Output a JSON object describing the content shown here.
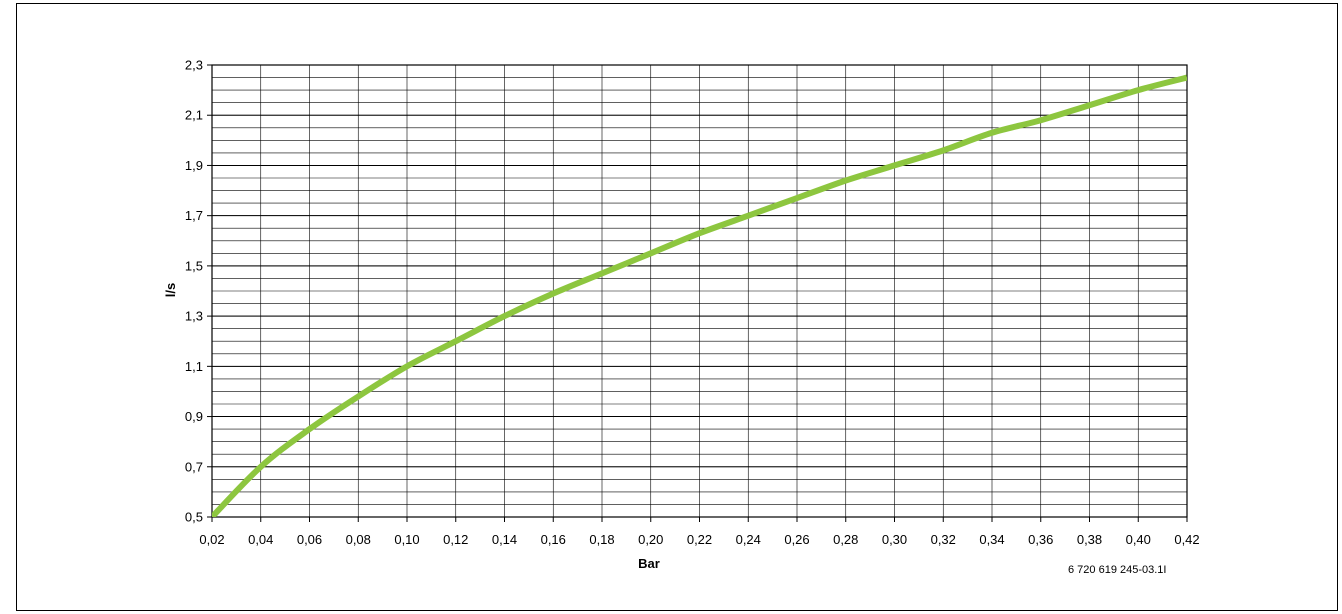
{
  "chart_data": {
    "type": "line",
    "xlabel": "Bar",
    "ylabel": "l/s",
    "xlim": [
      0.02,
      0.42
    ],
    "ylim": [
      0.5,
      2.3
    ],
    "x_ticks": [
      "0,02",
      "0,04",
      "0,06",
      "0,08",
      "0,10",
      "0,12",
      "0,14",
      "0,16",
      "0,18",
      "0,20",
      "0,22",
      "0,24",
      "0,26",
      "0,28",
      "0,30",
      "0,32",
      "0,34",
      "0,36",
      "0,38",
      "0,40",
      "0,42"
    ],
    "y_ticks": [
      "0,5",
      "0,7",
      "0,9",
      "1,1",
      "1,3",
      "1,5",
      "1,7",
      "1,9",
      "2,1",
      "2,3"
    ],
    "grid": true,
    "minor_y_step": 0.05,
    "line_color": "#8dc63f",
    "series": [
      {
        "x": [
          0.02,
          0.04,
          0.06,
          0.08,
          0.1,
          0.12,
          0.14,
          0.16,
          0.18,
          0.2,
          0.22,
          0.24,
          0.26,
          0.28,
          0.3,
          0.32,
          0.34,
          0.36,
          0.38,
          0.4,
          0.42
        ],
        "y": [
          0.5,
          0.7,
          0.85,
          0.98,
          1.1,
          1.2,
          1.3,
          1.39,
          1.47,
          1.55,
          1.63,
          1.7,
          1.77,
          1.84,
          1.9,
          1.96,
          2.03,
          2.08,
          2.14,
          2.2,
          2.25
        ]
      }
    ]
  },
  "figure_code": "6 720 619 245-03.1I"
}
